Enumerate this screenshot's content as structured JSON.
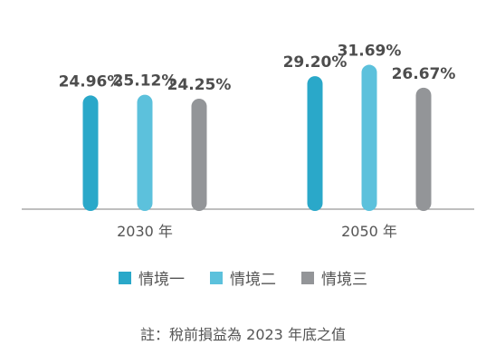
{
  "chart_data": {
    "type": "bar",
    "categories": [
      "2030 年",
      "2050 年"
    ],
    "series": [
      {
        "name": "情境一",
        "values": [
          24.96,
          29.2
        ],
        "labels": [
          "24.96%",
          "29.20%"
        ],
        "color": "#2aa8c9"
      },
      {
        "name": "情境二",
        "values": [
          25.12,
          31.69
        ],
        "labels": [
          "25.12%",
          "31.69%"
        ],
        "color": "#5cc1dc"
      },
      {
        "name": "情境三",
        "values": [
          24.25,
          26.67
        ],
        "labels": [
          "24.25%",
          "26.67%"
        ],
        "color": "#939598"
      }
    ],
    "ylim": [
      0,
      32
    ],
    "grid": false,
    "legend": "bottom"
  },
  "note": "註：稅前損益為 2023 年底之值"
}
